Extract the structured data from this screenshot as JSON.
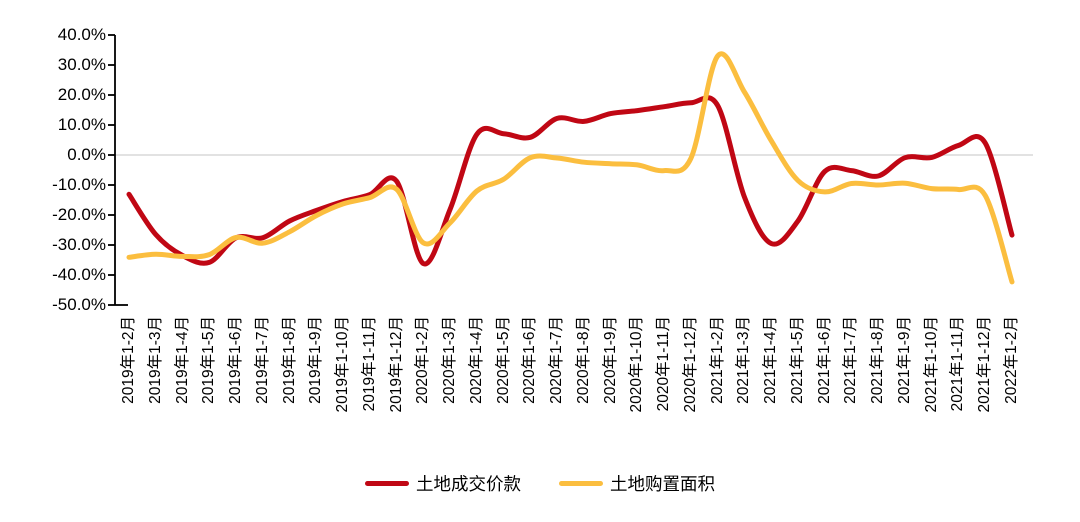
{
  "chart_data": {
    "type": "line",
    "title": "",
    "xlabel": "",
    "ylabel": "",
    "ylim": [
      -50,
      40
    ],
    "ytick_step": 10,
    "ytick_labels": [
      "40.0%",
      "30.0%",
      "20.0%",
      "10.0%",
      "0.0%",
      "-10.0%",
      "-20.0%",
      "-30.0%",
      "-40.0%",
      "-50.0%"
    ],
    "grid": "zero-line-only",
    "legend_position": "bottom-center",
    "zero_line_color": "#d9d9d9",
    "axis_color": "#000000",
    "categories": [
      "2019年1-2月",
      "2019年1-3月",
      "2019年1-4月",
      "2019年1-5月",
      "2019年1-6月",
      "2019年1-7月",
      "2019年1-8月",
      "2019年1-9月",
      "2019年1-10月",
      "2019年1-11月",
      "2019年1-12月",
      "2020年1-2月",
      "2020年1-3月",
      "2020年1-4月",
      "2020年1-5月",
      "2020年1-6月",
      "2020年1-7月",
      "2020年1-8月",
      "2020年1-9月",
      "2020年1-10月",
      "2020年1-11月",
      "2020年1-12月",
      "2021年1-2月",
      "2021年1-3月",
      "2021年1-4月",
      "2021年1-5月",
      "2021年1-6月",
      "2021年1-7月",
      "2021年1-8月",
      "2021年1-9月",
      "2021年1-10月",
      "2021年1-11月",
      "2021年1-12月",
      "2022年1-2月"
    ],
    "series": [
      {
        "name": "土地成交价款",
        "color": "#c00714",
        "values": [
          -13.1,
          -26.5,
          -33.5,
          -35.8,
          -27.6,
          -27.6,
          -22.0,
          -18.5,
          -15.5,
          -13.2,
          -8.7,
          -36.2,
          -18.1,
          6.9,
          7.1,
          5.9,
          12.2,
          11.2,
          13.8,
          14.8,
          16.1,
          17.4,
          16.5,
          -14.0,
          -29.5,
          -22.0,
          -5.5,
          -5.2,
          -7.0,
          -0.9,
          -0.8,
          3.2,
          4.0,
          -26.7
        ]
      },
      {
        "name": "土地购置面积",
        "color": "#fbbe3f",
        "values": [
          -34.1,
          -33.1,
          -33.8,
          -33.2,
          -27.5,
          -29.4,
          -25.6,
          -20.2,
          -16.3,
          -14.2,
          -11.4,
          -29.3,
          -22.6,
          -12.0,
          -8.1,
          -0.9,
          -1.0,
          -2.4,
          -2.9,
          -3.3,
          -5.2,
          -1.1,
          33.0,
          21.0,
          4.8,
          -8.5,
          -12.3,
          -9.5,
          -10.0,
          -9.4,
          -11.2,
          -11.5,
          -13.5,
          -42.3
        ]
      }
    ]
  }
}
